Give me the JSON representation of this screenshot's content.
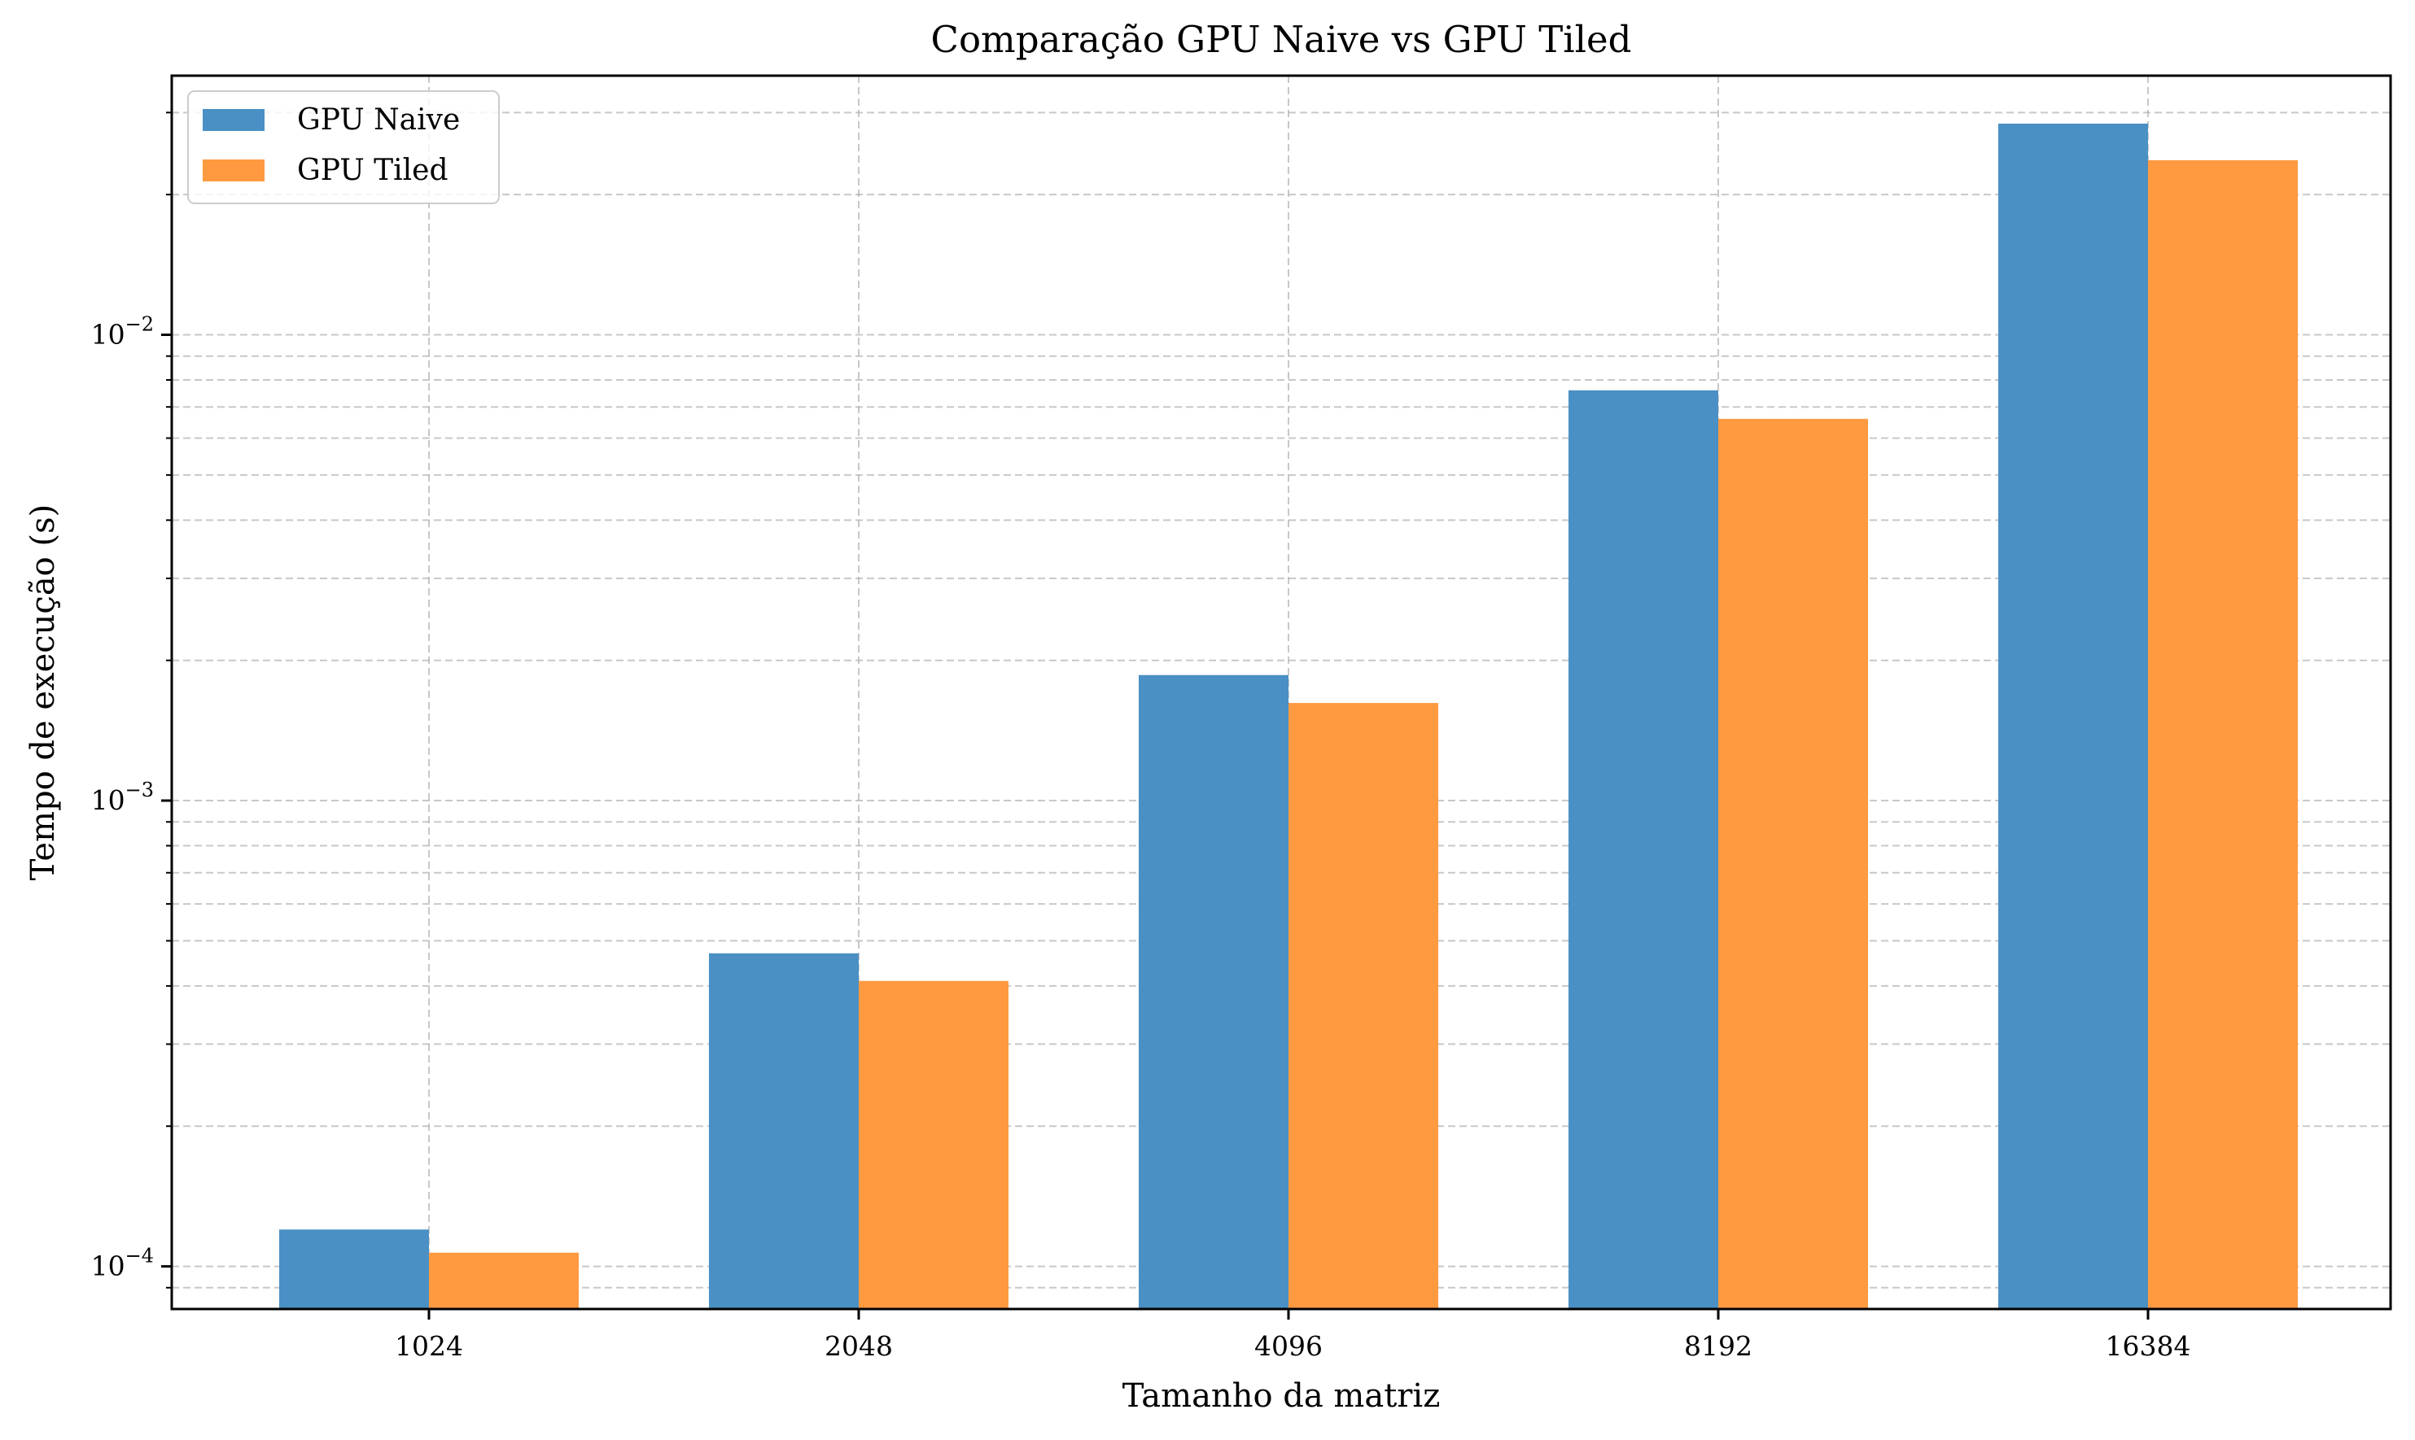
{
  "chart_data": {
    "type": "bar",
    "title": "Comparação GPU Naive vs GPU Tiled",
    "xlabel": "Tamanho da matriz",
    "ylabel": "Tempo de execução (s)",
    "categories": [
      "1024",
      "2048",
      "4096",
      "8192",
      "16384"
    ],
    "series": [
      {
        "name": "GPU Naive",
        "color": "#4a90c4",
        "values": [
          0.00012,
          0.00047,
          0.00186,
          0.0076,
          0.0284
        ]
      },
      {
        "name": "GPU Tiled",
        "color": "#ff9a40",
        "values": [
          0.000107,
          0.00041,
          0.00162,
          0.0066,
          0.0237
        ]
      }
    ],
    "y_scale": "log",
    "ylim": [
      8.1e-05,
      0.036
    ],
    "y_major_ticks": [
      {
        "value": 0.0001,
        "base": "10",
        "exp": "−4"
      },
      {
        "value": 0.001,
        "base": "10",
        "exp": "−3"
      },
      {
        "value": 0.01,
        "base": "10",
        "exp": "−2"
      }
    ],
    "grid": true,
    "grid_style": "dashed",
    "legend_position": "top-left"
  }
}
